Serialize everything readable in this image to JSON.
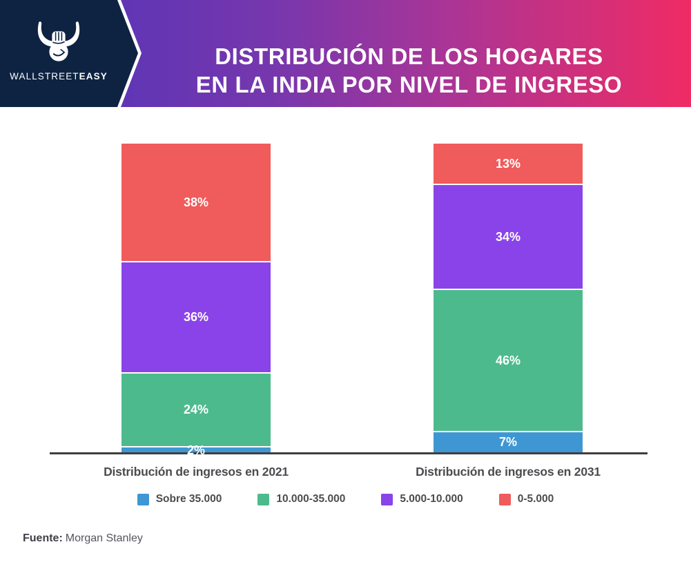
{
  "brand": {
    "wordmark_regular": "WALLSTREET",
    "wordmark_bold": "EASY",
    "logo_bg_color": "#0E2342",
    "logo_icon": "bull-fist-icon"
  },
  "header": {
    "title_line1": "DISTRIBUCIÓN DE LOS HOGARES",
    "title_line2": "EN LA INDIA POR NIVEL DE INGRESO",
    "gradient_start_color": "#4D34BA",
    "gradient_end_color": "#F02B64",
    "text_color": "#FFFFFF"
  },
  "footer": {
    "source_label": "Fuente:",
    "source_value": "Morgan Stanley"
  },
  "chart_data": {
    "type": "bar",
    "stacked": true,
    "title": "Distribución de los hogares en la India por nivel de ingreso",
    "categories": [
      "Distribución de ingresos en 2021",
      "Distribución de ingresos en 2031"
    ],
    "series": [
      {
        "name": "Sobre 35.000",
        "color": "#3E97D3",
        "values": [
          2,
          7
        ]
      },
      {
        "name": "10.000-35.000",
        "color": "#4DBA8D",
        "values": [
          24,
          46
        ]
      },
      {
        "name": "5.000-10.000",
        "color": "#8A43E8",
        "values": [
          36,
          34
        ]
      },
      {
        "name": "0-5.000",
        "color": "#F05B5B",
        "values": [
          38,
          13
        ]
      }
    ],
    "value_suffix": "%",
    "ylim": [
      0,
      100
    ],
    "grid": false,
    "axis_line_color": "#3E3E3E",
    "legend_position": "bottom"
  }
}
